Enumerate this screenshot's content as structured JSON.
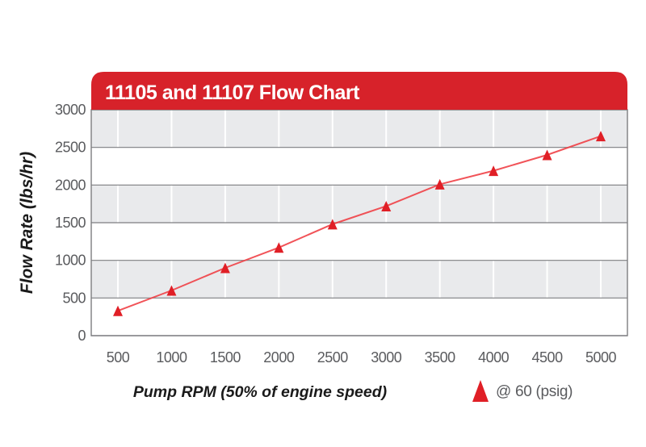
{
  "chart": {
    "title": "11105 and 11107 Flow Chart",
    "x_axis_label": "Pump RPM (50% of engine speed)",
    "y_axis_label": "Flow Rate (lbs/hr)",
    "legend": {
      "marker": "triangle-up-icon",
      "label": "@ 60 (psig)"
    }
  },
  "chart_data": {
    "type": "line",
    "title": "11105 and 11107 Flow Chart",
    "xlabel": "Pump RPM (50% of engine speed)",
    "ylabel": "Flow Rate (lbs/hr)",
    "x": [
      500,
      1000,
      1500,
      2000,
      2500,
      3000,
      3500,
      4000,
      4500,
      5000
    ],
    "series": [
      {
        "name": "@ 60 (psig)",
        "marker": "triangle-up",
        "values": [
          330,
          600,
          900,
          1170,
          1480,
          1720,
          2010,
          2190,
          2400,
          2650
        ]
      }
    ],
    "x_ticks": [
      500,
      1000,
      1500,
      2000,
      2500,
      3000,
      3500,
      4000,
      4500,
      5000
    ],
    "y_ticks": [
      0,
      500,
      1000,
      1500,
      2000,
      2500,
      3000
    ],
    "ylim": [
      0,
      3000
    ],
    "grid": "horizontal gridlines every 500 with alternating gray/white bands, faint vertical separators at each x tick",
    "legend_position": "bottom-right below axis"
  },
  "colors": {
    "banner_red": "#d7222a",
    "marker_red": "#e01f26",
    "line_red": "#ef4046",
    "band_gray": "#e9eaec",
    "grid_gray": "#7d7e81",
    "tick_text_gray": "#5a5b5e",
    "axis_title_black": "#1a1a1a",
    "title_white": "#ffffff",
    "background": "#ffffff"
  }
}
